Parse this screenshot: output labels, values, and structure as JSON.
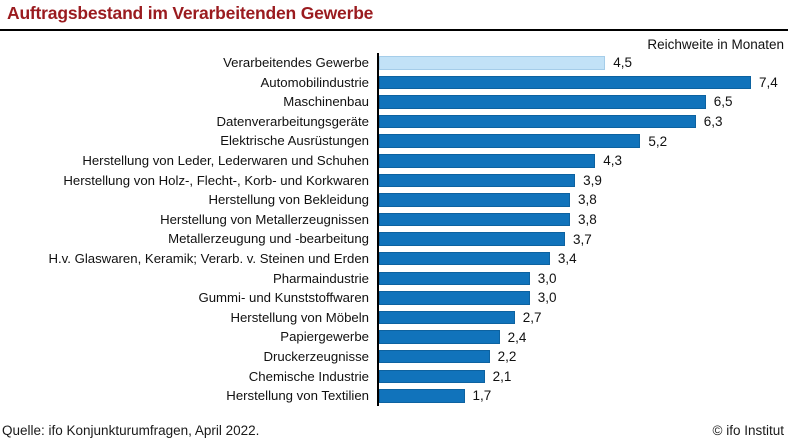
{
  "title": "Auftragsbestand im Verarbeitenden Gewerbe",
  "axis_label": "Reichweite in Monaten",
  "footer": {
    "source": "Quelle: ifo Konjunkturumfragen, April 2022.",
    "copyright": "© ifo Institut"
  },
  "colors": {
    "title": "#9a1b1f",
    "rule": "#000000",
    "axis_line": "#000000",
    "text": "#111111",
    "bar": "#1173bb",
    "bar_border": "#0d62a0",
    "bar_highlight": "#c2e2f7",
    "bar_highlight_border": "#a5cde9"
  },
  "chart_data": {
    "type": "bar",
    "orientation": "horizontal",
    "title": "Auftragsbestand im Verarbeitenden Gewerbe",
    "xlabel": "Reichweite in Monaten",
    "ylabel": "",
    "xlim": [
      0,
      7.4
    ],
    "grid": false,
    "legend": "none",
    "highlight_index": 0,
    "categories": [
      "Verarbeitendes Gewerbe",
      "Automobilindustrie",
      "Maschinenbau",
      "Datenverarbeitungsgeräte",
      "Elektrische Ausrüstungen",
      "Herstellung von Leder, Lederwaren und Schuhen",
      "Herstellung von Holz-, Flecht-, Korb- und Korkwaren",
      "Herstellung von Bekleidung",
      "Herstellung von Metallerzeugnissen",
      "Metallerzeugung und -bearbeitung",
      "H.v. Glaswaren, Keramik; Verarb. v. Steinen und Erden",
      "Pharmaindustrie",
      "Gummi- und Kunststoffwaren",
      "Herstellung von Möbeln",
      "Papiergewerbe",
      "Druckerzeugnisse",
      "Chemische Industrie",
      "Herstellung von Textilien"
    ],
    "values": [
      4.5,
      7.4,
      6.5,
      6.3,
      5.2,
      4.3,
      3.9,
      3.8,
      3.8,
      3.7,
      3.4,
      3.0,
      3.0,
      2.7,
      2.4,
      2.2,
      2.1,
      1.7
    ],
    "display_values": [
      "4,5",
      "7,4",
      "6,5",
      "6,3",
      "5,2",
      "4,3",
      "3,9",
      "3,8",
      "3,8",
      "3,7",
      "3,4",
      "3,0",
      "3,0",
      "2,7",
      "2,4",
      "2,2",
      "2,1",
      "1,7"
    ]
  }
}
